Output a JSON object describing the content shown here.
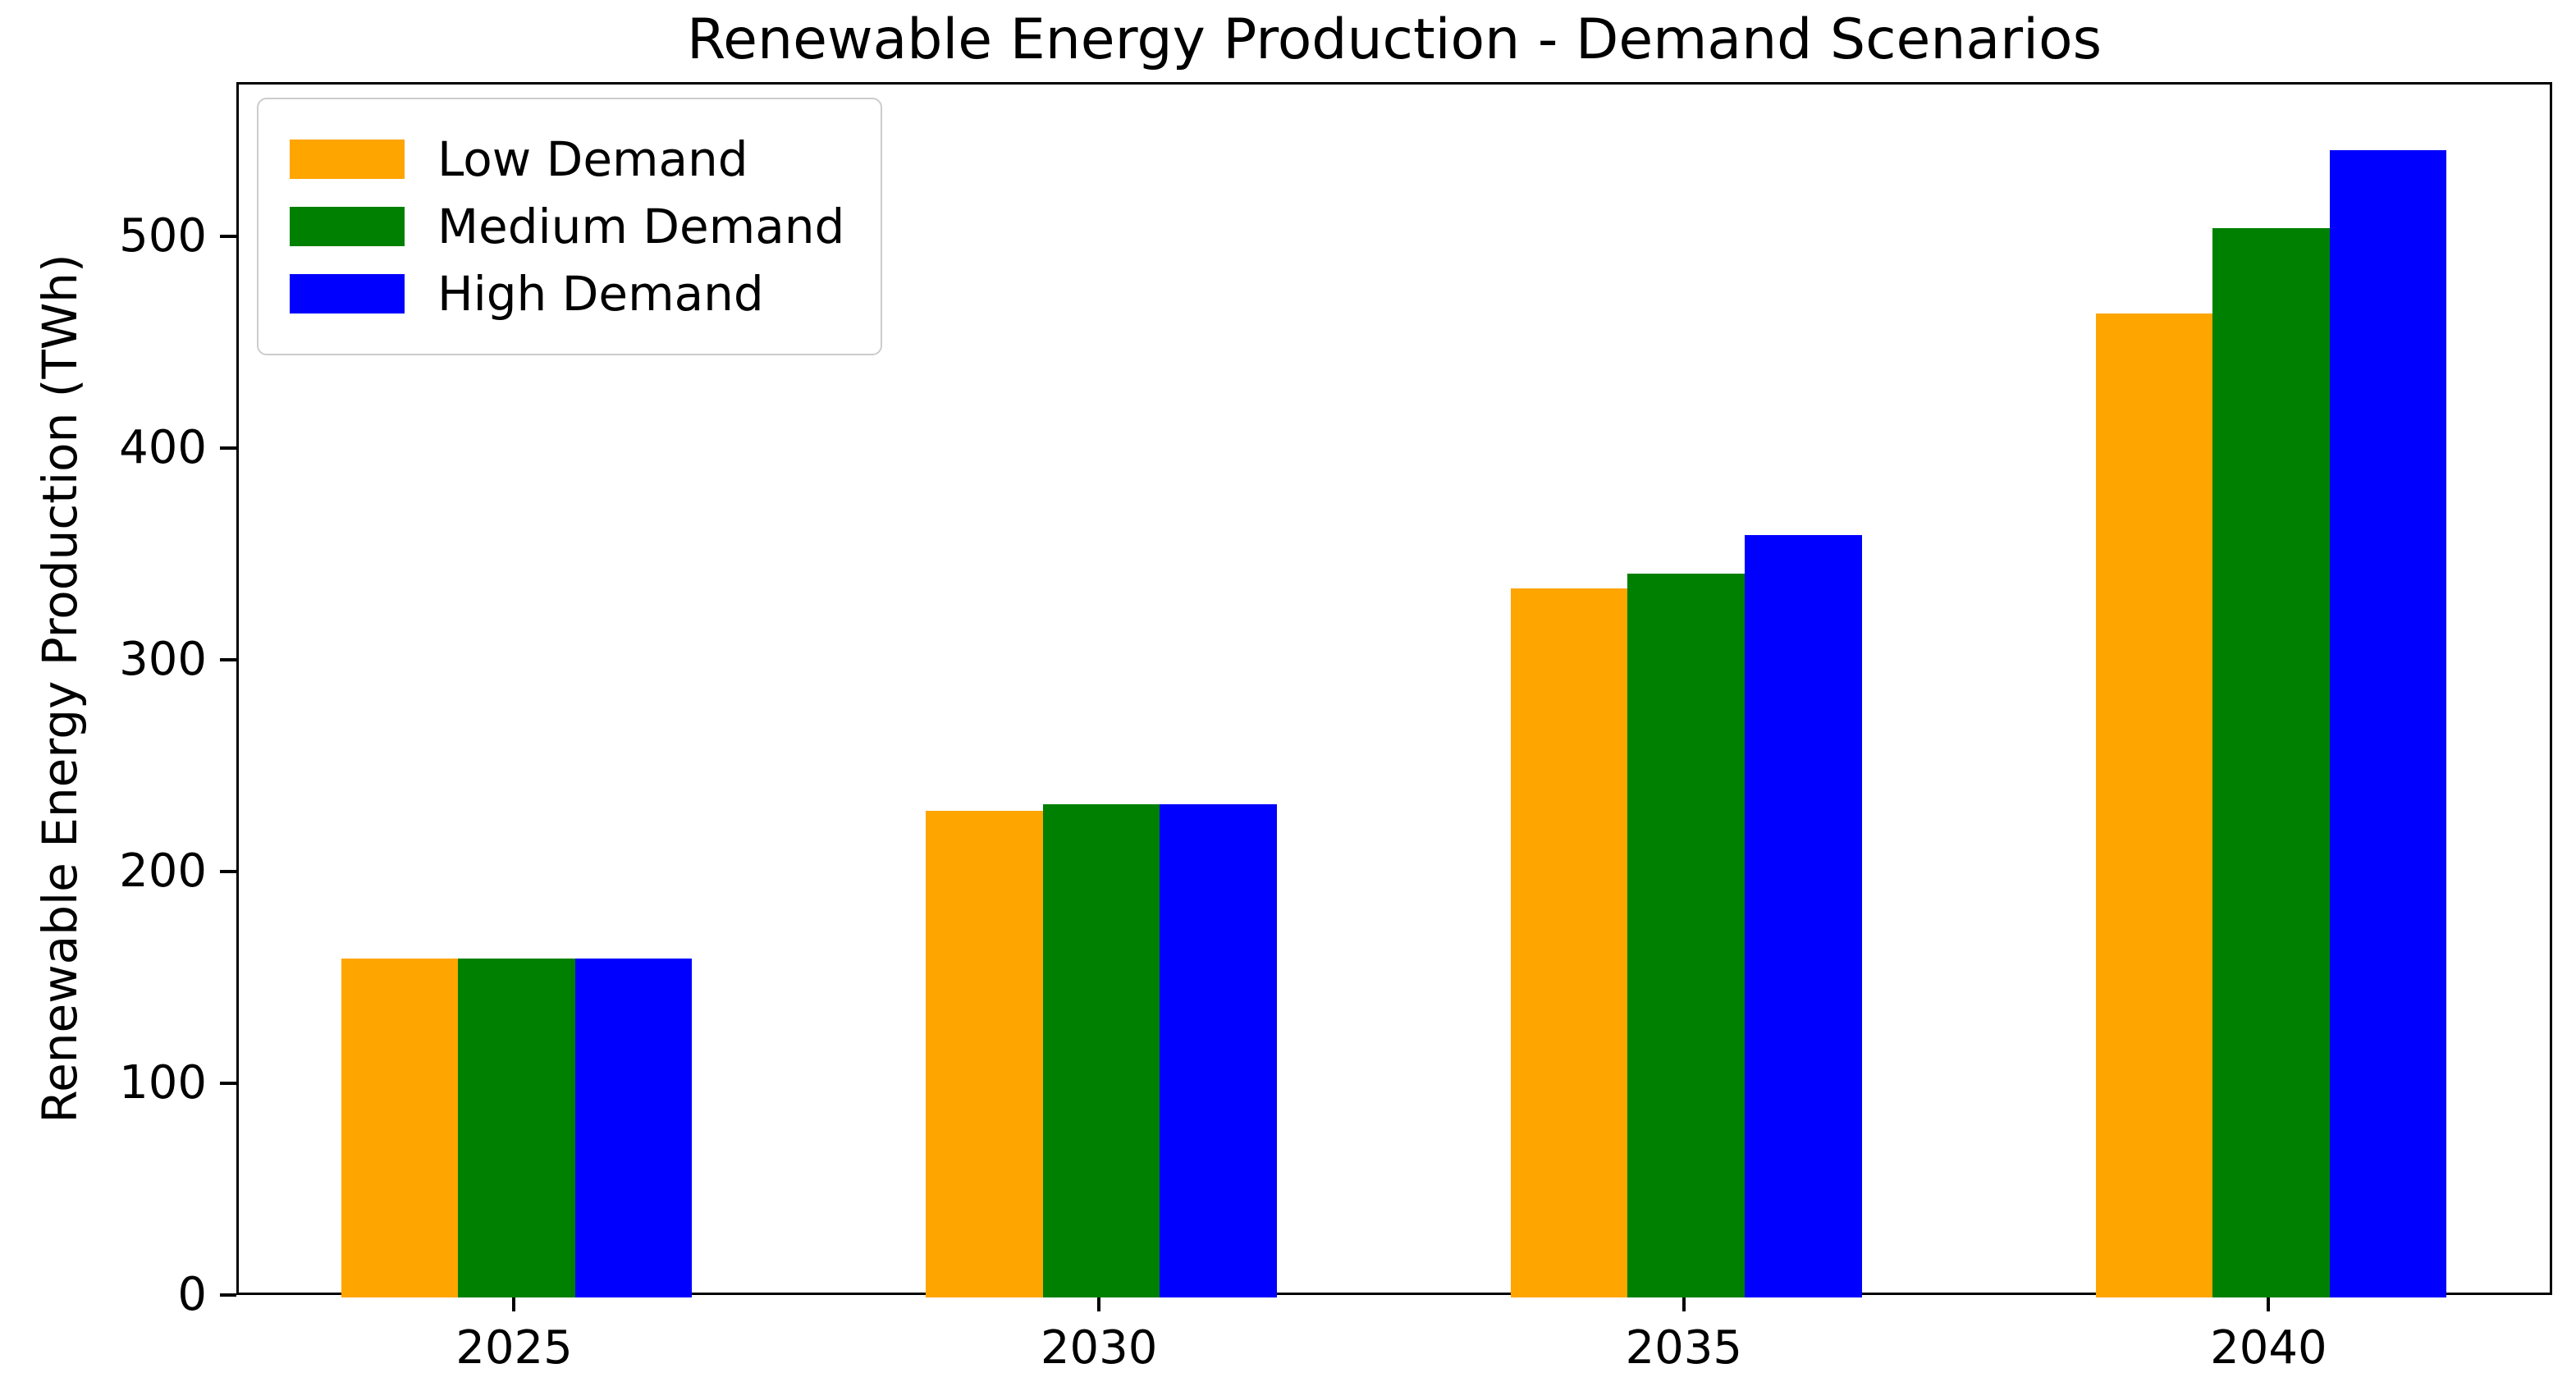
{
  "title": "Renewable Energy Production - Demand Scenarios",
  "chart_data": {
    "type": "bar",
    "title": "Renewable Energy Production - Demand Scenarios",
    "xlabel": "",
    "ylabel": "Renewable Energy Production (TWh)",
    "categories": [
      "2025",
      "2030",
      "2035",
      "2040"
    ],
    "series": [
      {
        "name": "Low Demand",
        "color": "#FFA500",
        "values": [
          160,
          230,
          335,
          465
        ]
      },
      {
        "name": "Medium Demand",
        "color": "#008000",
        "values": [
          160,
          233,
          342,
          505
        ]
      },
      {
        "name": "High Demand",
        "color": "#0000FF",
        "values": [
          160,
          233,
          360,
          542
        ]
      }
    ],
    "yticks": [
      0,
      100,
      200,
      300,
      400,
      500
    ],
    "ylim": [
      0,
      573
    ],
    "xlim": [
      -0.475,
      3.485
    ],
    "bar_width": 0.2,
    "grid": false,
    "legend_position": "upper left",
    "background_color": "#ffffff",
    "spine_color": "#000000",
    "text_color": "#000000",
    "legend_edge_color": "#cccccc"
  }
}
